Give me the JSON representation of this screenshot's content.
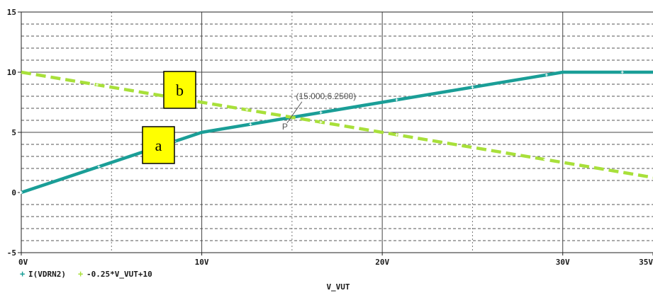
{
  "chart_data": {
    "type": "line",
    "xlabel": "V_VUT",
    "x_ticks": [
      "0V",
      "10V",
      "20V",
      "30V",
      "35V"
    ],
    "y_ticks": [
      "15",
      "10",
      "5",
      "0",
      "-5"
    ],
    "xlim": [
      0,
      35
    ],
    "ylim": [
      -5,
      15
    ],
    "grid": true,
    "legend_position": "bottom-left",
    "series": [
      {
        "name": "I(VDRN2)",
        "color": "#1a9e97",
        "style": "solid",
        "x": [
          0,
          10,
          15,
          30,
          35
        ],
        "y": [
          0,
          5,
          6.25,
          10,
          10
        ],
        "markers_x": [
          0,
          4.3,
          8.5,
          12.7,
          16.6,
          20.8,
          25,
          29.1,
          33.3
        ]
      },
      {
        "name": "-0.25*V_VUT+10",
        "color": "#a8e03a",
        "style": "dashed",
        "x": [
          0,
          35
        ],
        "y": [
          10,
          1.25
        ],
        "markers_x": [
          4.2,
          8.3,
          12.5,
          16.6,
          20.8,
          25,
          29
        ]
      }
    ],
    "annotations": [
      {
        "text": "(15.000,6.2500)",
        "x": 15,
        "y": 6.25
      },
      {
        "text": "P",
        "x": 15,
        "y": 6.25
      }
    ],
    "callouts": [
      {
        "label": "a",
        "series": "I(VDRN2)",
        "fill": "#ffff00"
      },
      {
        "label": "b",
        "series": "-0.25*V_VUT+10",
        "fill": "#ffff00"
      }
    ]
  }
}
